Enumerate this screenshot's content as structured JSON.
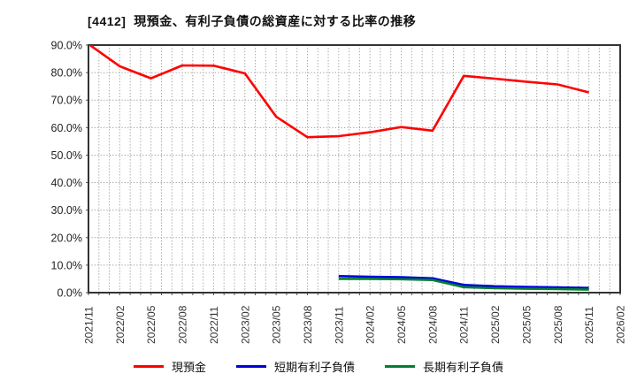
{
  "title": "[4412]  現預金、有利子負債の総資産に対する比率の推移",
  "chart_data": {
    "type": "line",
    "title": "[4412]  現預金、有利子負債の総資産に対する比率の推移",
    "x_tick_labels": [
      "2021/11",
      "2022/02",
      "2022/05",
      "2022/08",
      "2022/11",
      "2023/02",
      "2023/05",
      "2023/08",
      "2023/11",
      "2024/02",
      "2024/05",
      "2024/08",
      "2024/11",
      "2025/02",
      "2025/05",
      "2025/08",
      "2025/11",
      "2026/02"
    ],
    "months_per_tick": 3,
    "y_tick_labels": [
      "0.0%",
      "10.0%",
      "20.0%",
      "30.0%",
      "40.0%",
      "50.0%",
      "60.0%",
      "70.0%",
      "80.0%",
      "90.0%"
    ],
    "ylim": [
      0,
      90
    ],
    "grid": "dotted",
    "legend_position": "bottom",
    "series": [
      {
        "key": "cash",
        "name": "現預金",
        "color": "#ff0000",
        "values": [
          90.4,
          82.3,
          77.9,
          82.6,
          82.5,
          79.7,
          64.0,
          56.5,
          56.9,
          58.3,
          60.2,
          58.9,
          78.8,
          77.8,
          76.7,
          75.7,
          72.8,
          null
        ]
      },
      {
        "key": "short_term_debt",
        "name": "短期有利子負債",
        "color": "#0000dd",
        "values": [
          null,
          null,
          null,
          null,
          null,
          null,
          null,
          null,
          6.0,
          5.8,
          5.6,
          5.2,
          2.8,
          2.3,
          2.1,
          1.9,
          1.7,
          null
        ]
      },
      {
        "key": "long_term_debt",
        "name": "長期有利子負債",
        "color": "#008030",
        "values": [
          null,
          null,
          null,
          null,
          null,
          null,
          null,
          null,
          5.0,
          5.0,
          4.9,
          4.6,
          2.0,
          1.6,
          1.4,
          1.3,
          1.1,
          null
        ]
      }
    ]
  }
}
